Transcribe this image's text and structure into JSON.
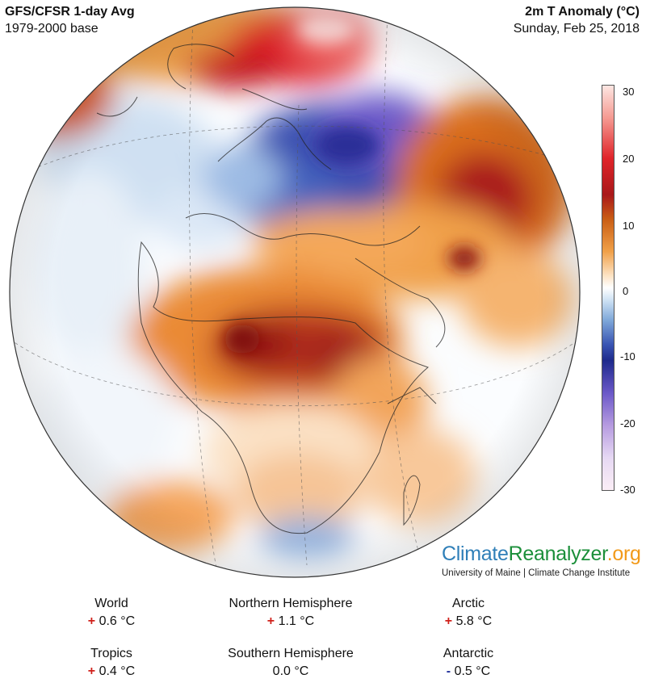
{
  "header": {
    "left_title": "GFS/CFSR 1-day Avg",
    "left_subtitle": "1979-2000 base",
    "right_title": "2m T Anomaly (°C)",
    "right_subtitle": "Sunday, Feb 25, 2018"
  },
  "colorbar": {
    "ticks": [
      "30",
      "20",
      "10",
      "0",
      "-10",
      "-20",
      "-30"
    ],
    "values": [
      30,
      20,
      10,
      0,
      -10,
      -20,
      -30
    ]
  },
  "brand": {
    "part1": "Climate",
    "part2": "Reanalyzer",
    "part3": ".org",
    "institution": "University of Maine | Climate Change Institute",
    "colors": {
      "climate": "#2f7fb8",
      "reanalyzer": "#1b8f3a",
      "org": "#f29a1a"
    }
  },
  "stats": [
    {
      "label": "World",
      "sign": "+",
      "value": "0.6 °C"
    },
    {
      "label": "Northern Hemisphere",
      "sign": "+",
      "value": "1.1 °C"
    },
    {
      "label": "Arctic",
      "sign": "+",
      "value": "5.8 °C"
    },
    {
      "label": "Tropics",
      "sign": "+",
      "value": "0.4 °C"
    },
    {
      "label": "Southern Hemisphere",
      "sign": "",
      "value": "0.0 °C"
    },
    {
      "label": "Antarctic",
      "sign": "-",
      "value": "0.5 °C"
    }
  ],
  "colors": {
    "warm": "#d0201a",
    "cold": "#1f2f9a"
  }
}
